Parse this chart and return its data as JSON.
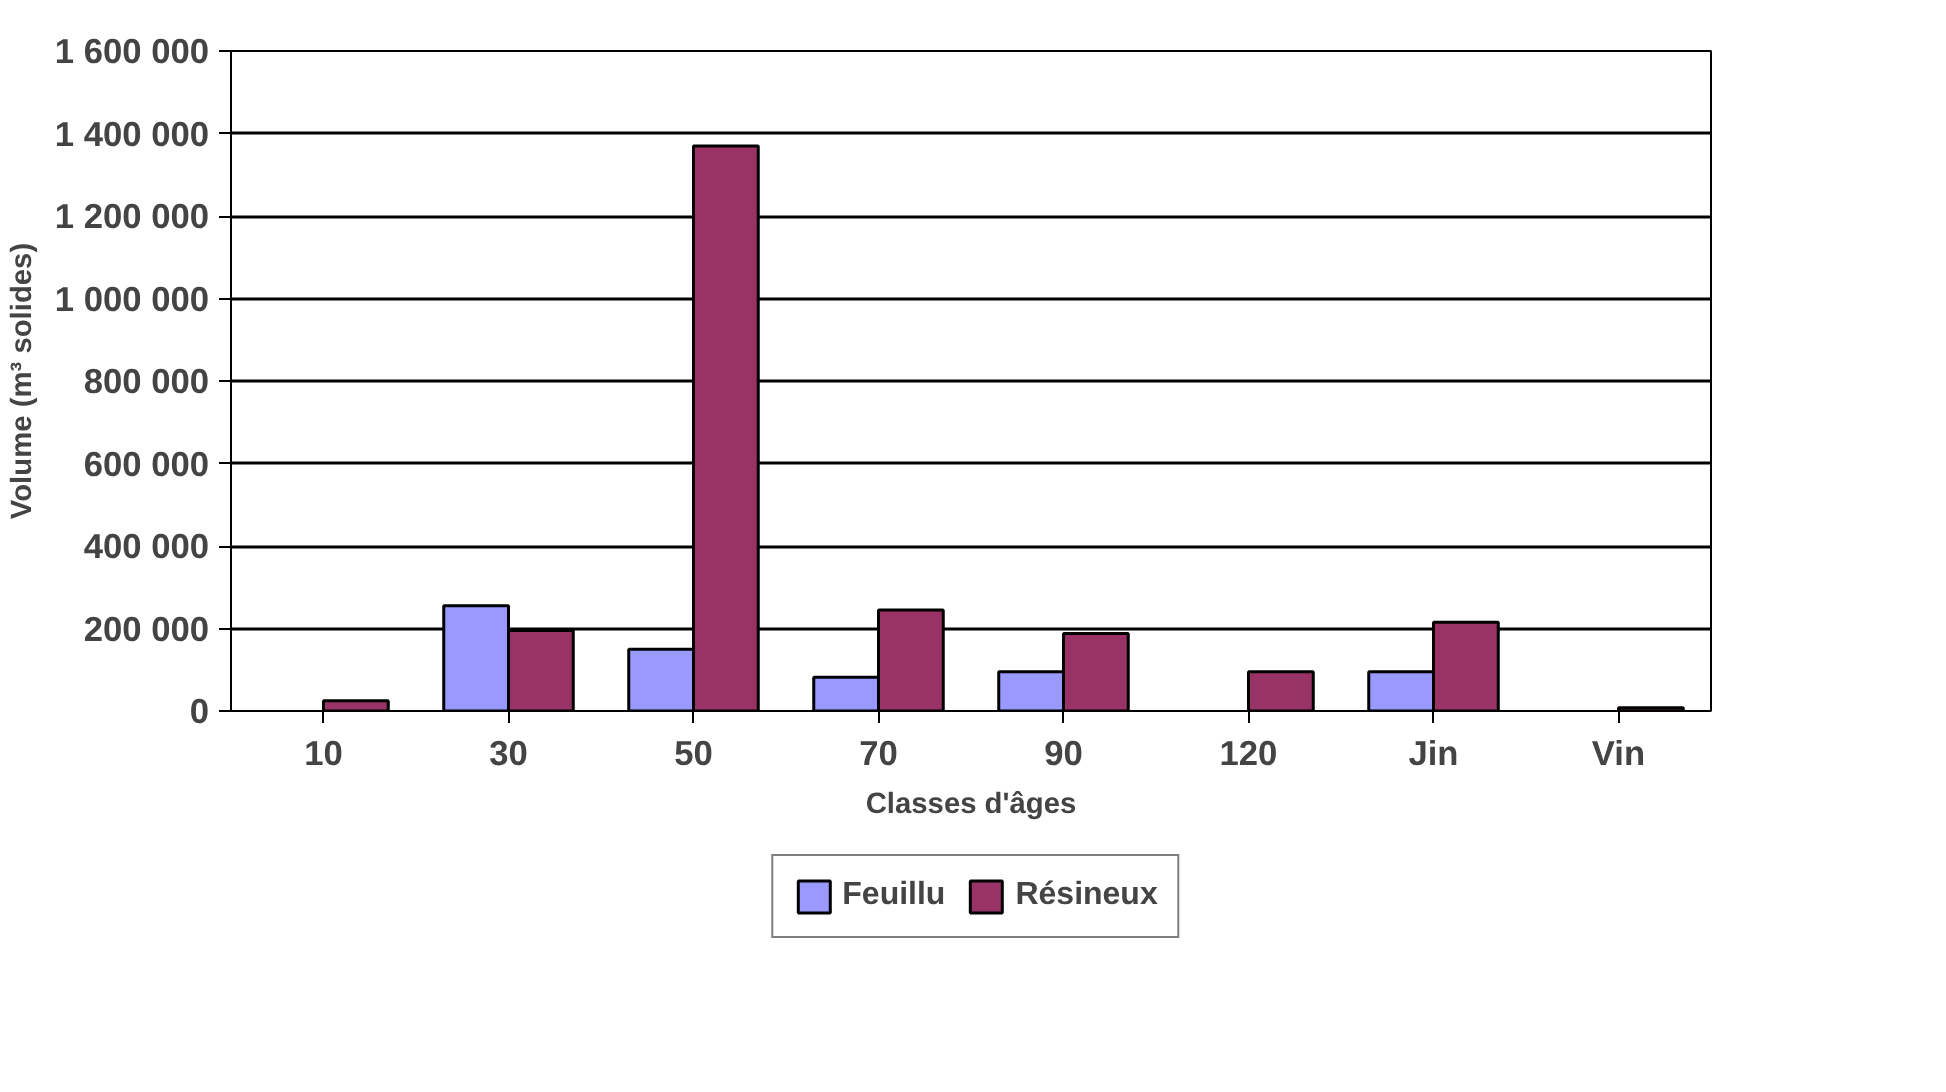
{
  "chart_data": {
    "type": "bar",
    "xlabel": "Classes d'âges",
    "ylabel": "Volume (m³ solides)",
    "categories": [
      "10",
      "30",
      "50",
      "70",
      "90",
      "120",
      "Jin",
      "Vin"
    ],
    "series": [
      {
        "name": "Feuillu",
        "color": "#9999ff",
        "values": [
          null,
          255000,
          150000,
          82000,
          95000,
          null,
          95000,
          null
        ]
      },
      {
        "name": "Résineux",
        "color": "#993366",
        "values": [
          25000,
          195000,
          1370000,
          245000,
          188000,
          95000,
          215000,
          8000
        ]
      }
    ],
    "ylim": [
      0,
      1600000
    ],
    "yticks": [
      {
        "value": 0,
        "label": "0"
      },
      {
        "value": 200000,
        "label": "200 000"
      },
      {
        "value": 400000,
        "label": "400 000"
      },
      {
        "value": 600000,
        "label": "600 000"
      },
      {
        "value": 800000,
        "label": "800 000"
      },
      {
        "value": 1000000,
        "label": "1 000 000"
      },
      {
        "value": 1200000,
        "label": "1 200 000"
      },
      {
        "value": 1400000,
        "label": "1 400 000"
      },
      {
        "value": 1600000,
        "label": "1 600 000"
      }
    ],
    "grid": "y",
    "legend": "bottom"
  }
}
